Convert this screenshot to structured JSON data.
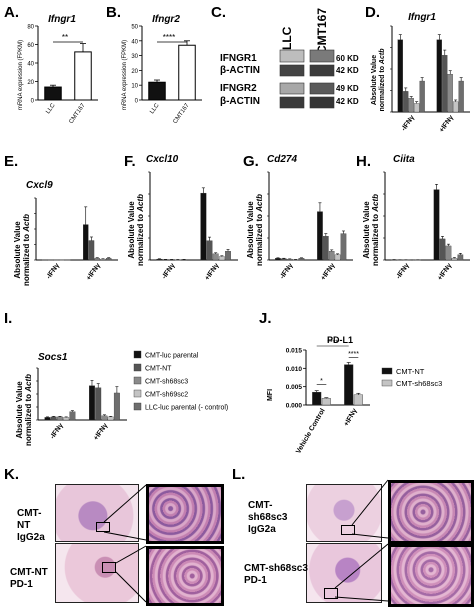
{
  "panel_labels": [
    "A.",
    "B.",
    "C.",
    "D.",
    "E.",
    "F.",
    "G.",
    "H.",
    "I.",
    "J.",
    "K.",
    "L."
  ],
  "colors": {
    "black": "#111111",
    "dark_gray": "#555555",
    "mid_gray": "#8a8a8a",
    "light_gray": "#c4c4c4",
    "white": "#ffffff",
    "tissue_pink": "#e6b3cc",
    "tissue_purple": "#7b4a8c"
  },
  "panelA": {
    "title": "Ifngr1",
    "ylabel": "mRNA expression (FPKM)",
    "significance": "**",
    "chart_data": {
      "type": "bar",
      "categories": [
        "LLC",
        "CMT167"
      ],
      "values": [
        14,
        52
      ],
      "errors": [
        2,
        9
      ],
      "yticks": [
        0,
        20,
        40,
        60,
        80
      ],
      "ylim": [
        0,
        80
      ]
    }
  },
  "panelB": {
    "title": "Ifngr2",
    "ylabel": "mRNA expression (FPKM)",
    "significance": "****",
    "chart_data": {
      "type": "bar",
      "categories": [
        "LLC",
        "CMT167"
      ],
      "values": [
        12,
        37
      ],
      "errors": [
        1.5,
        3
      ],
      "yticks": [
        0,
        10,
        20,
        30,
        40,
        50
      ],
      "ylim": [
        0,
        50
      ]
    }
  },
  "panelC": {
    "col_labels": [
      "LLC",
      "CMT167"
    ],
    "rows": [
      {
        "label": "IFNGR1",
        "kd": "60 KD"
      },
      {
        "label": "β-ACTIN",
        "kd": "42 KD"
      },
      {
        "label": "IFNGR2",
        "kd": "49 KD"
      },
      {
        "label": "β-ACTIN",
        "kd": "42 KD"
      }
    ]
  },
  "group_ticks": [
    "-IFNγ",
    "+IFNγ"
  ],
  "ylabel_line1": "Absolute Value",
  "ylabel_line2": "normalized to ",
  "ylabel_gene": "Actb",
  "genes": {
    "D": "Ifngr1",
    "E": "Cxcl9",
    "F": "Cxcl10",
    "G": "Cd274",
    "H": "Ciita",
    "I": "Socs1"
  },
  "chart_data": [
    {
      "panel": "D",
      "type": "bar",
      "title": "Ifngr1",
      "categories": [
        "-IFNγ",
        "+IFNγ"
      ],
      "series_values": [
        [
          0.0042,
          0.0042
        ],
        [
          0.0012,
          0.0033
        ],
        [
          0.0008,
          0.0022
        ],
        [
          0.0005,
          0.0006
        ],
        [
          0.0018,
          0.0018
        ]
      ],
      "errors": [
        [
          0.0003,
          0.0003
        ],
        [
          0.0002,
          0.0003
        ],
        [
          0.0001,
          0.0002
        ],
        [
          0.0001,
          0.0001
        ],
        [
          0.0002,
          0.0002
        ]
      ],
      "ylim": [
        0,
        0.005
      ]
    },
    {
      "panel": "E",
      "type": "bar",
      "title": "Cxcl9",
      "categories": [
        "-IFNγ",
        "+IFNγ"
      ],
      "series_values": [
        [
          0.01,
          2.0
        ],
        [
          0.01,
          1.1
        ],
        [
          0.01,
          0.1
        ],
        [
          0.01,
          0.05
        ],
        [
          0.01,
          0.1
        ]
      ],
      "errors": [
        [
          0,
          1.0
        ],
        [
          0,
          0.2
        ],
        [
          0,
          0.03
        ],
        [
          0,
          0.02
        ],
        [
          0,
          0.03
        ]
      ],
      "ylim": [
        0,
        3.5
      ]
    },
    {
      "panel": "F",
      "type": "bar",
      "title": "Cxcl10",
      "categories": [
        "-IFNγ",
        "+IFNγ"
      ],
      "series_values": [
        [
          0.05,
          3.8
        ],
        [
          0.03,
          1.1
        ],
        [
          0.03,
          0.35
        ],
        [
          0.02,
          0.2
        ],
        [
          0.03,
          0.5
        ]
      ],
      "errors": [
        [
          0.02,
          0.3
        ],
        [
          0.01,
          0.2
        ],
        [
          0.01,
          0.06
        ],
        [
          0.01,
          0.04
        ],
        [
          0.01,
          0.1
        ]
      ],
      "ylim": [
        0,
        5
      ]
    },
    {
      "panel": "G",
      "type": "bar",
      "title": "Cd274",
      "categories": [
        "-IFNγ",
        "+IFNγ"
      ],
      "series_values": [
        [
          0.2,
          5.5
        ],
        [
          0.15,
          2.7
        ],
        [
          0.1,
          1.0
        ],
        [
          0.05,
          0.6
        ],
        [
          0.2,
          3.0
        ]
      ],
      "errors": [
        [
          0.05,
          1.0
        ],
        [
          0.05,
          0.3
        ],
        [
          0.03,
          0.15
        ],
        [
          0.02,
          0.1
        ],
        [
          0.05,
          0.3
        ]
      ],
      "ylim": [
        0,
        10
      ]
    },
    {
      "panel": "H",
      "type": "bar",
      "title": "Ciita",
      "categories": [
        "-IFNγ",
        "+IFNγ"
      ],
      "series_values": [
        [
          0.1,
          20
        ],
        [
          0.05,
          6
        ],
        [
          0.05,
          4
        ],
        [
          0.02,
          0.5
        ],
        [
          0.05,
          1.5
        ]
      ],
      "errors": [
        [
          0.02,
          1.5
        ],
        [
          0.02,
          0.7
        ],
        [
          0.02,
          0.5
        ],
        [
          0.01,
          0.2
        ],
        [
          0.02,
          0.4
        ]
      ],
      "ylim": [
        0,
        25
      ]
    },
    {
      "panel": "I",
      "type": "bar",
      "title": "Socs1",
      "categories": [
        "-IFNγ",
        "+IFNγ"
      ],
      "series_values": [
        [
          0.25,
          3.3
        ],
        [
          0.3,
          3.1
        ],
        [
          0.3,
          0.4
        ],
        [
          0.25,
          0.3
        ],
        [
          0.8,
          2.6
        ]
      ],
      "errors": [
        [
          0.05,
          0.5
        ],
        [
          0.05,
          0.4
        ],
        [
          0.05,
          0.1
        ],
        [
          0.05,
          0.05
        ],
        [
          0.1,
          0.6
        ]
      ],
      "ylim": [
        0,
        5
      ]
    },
    {
      "panel": "J",
      "type": "bar",
      "title": "PD-L1",
      "ylabel": "MFI",
      "categories": [
        "Vehicle Control",
        "+IFNγ"
      ],
      "series": [
        {
          "name": "CMT-NT",
          "values": [
            0.0035,
            0.011
          ]
        },
        {
          "name": "CMT-sh68sc3",
          "values": [
            0.0018,
            0.0028
          ]
        }
      ],
      "errors": [
        [
          0.0004,
          0.0006
        ],
        [
          0.0002,
          0.0004
        ]
      ],
      "yticks": [
        0.0,
        0.005,
        0.01,
        0.015
      ],
      "ytick_labels": [
        "0.000",
        "0.005",
        "0.010",
        "0.015"
      ],
      "ylim": [
        0,
        0.015
      ],
      "significance": [
        "*",
        "****",
        "****"
      ]
    }
  ],
  "legend_I": [
    {
      "name": "CMT-luc parental",
      "color": "#111111"
    },
    {
      "name": "CMT-NT",
      "color": "#555555"
    },
    {
      "name": "CMT-sh68sc3",
      "color": "#8a8a8a"
    },
    {
      "name": "CMT-sh69sc2",
      "color": "#c4c4c4"
    },
    {
      "name": "LLC-luc parental (- control)",
      "color": "#6e6e6e"
    }
  ],
  "panelK": {
    "labels": [
      {
        "line1": "CMT-",
        "line2": "NT",
        "line3": "IgG2a"
      },
      {
        "line1": "CMT-NT",
        "line2": "PD-1",
        "line3": ""
      }
    ]
  },
  "panelL": {
    "labels": [
      {
        "line1": "CMT-",
        "line2": "sh68sc3",
        "line3": "IgG2a"
      },
      {
        "line1": "CMT-sh68sc3",
        "line2": "PD-1",
        "line3": ""
      }
    ]
  }
}
